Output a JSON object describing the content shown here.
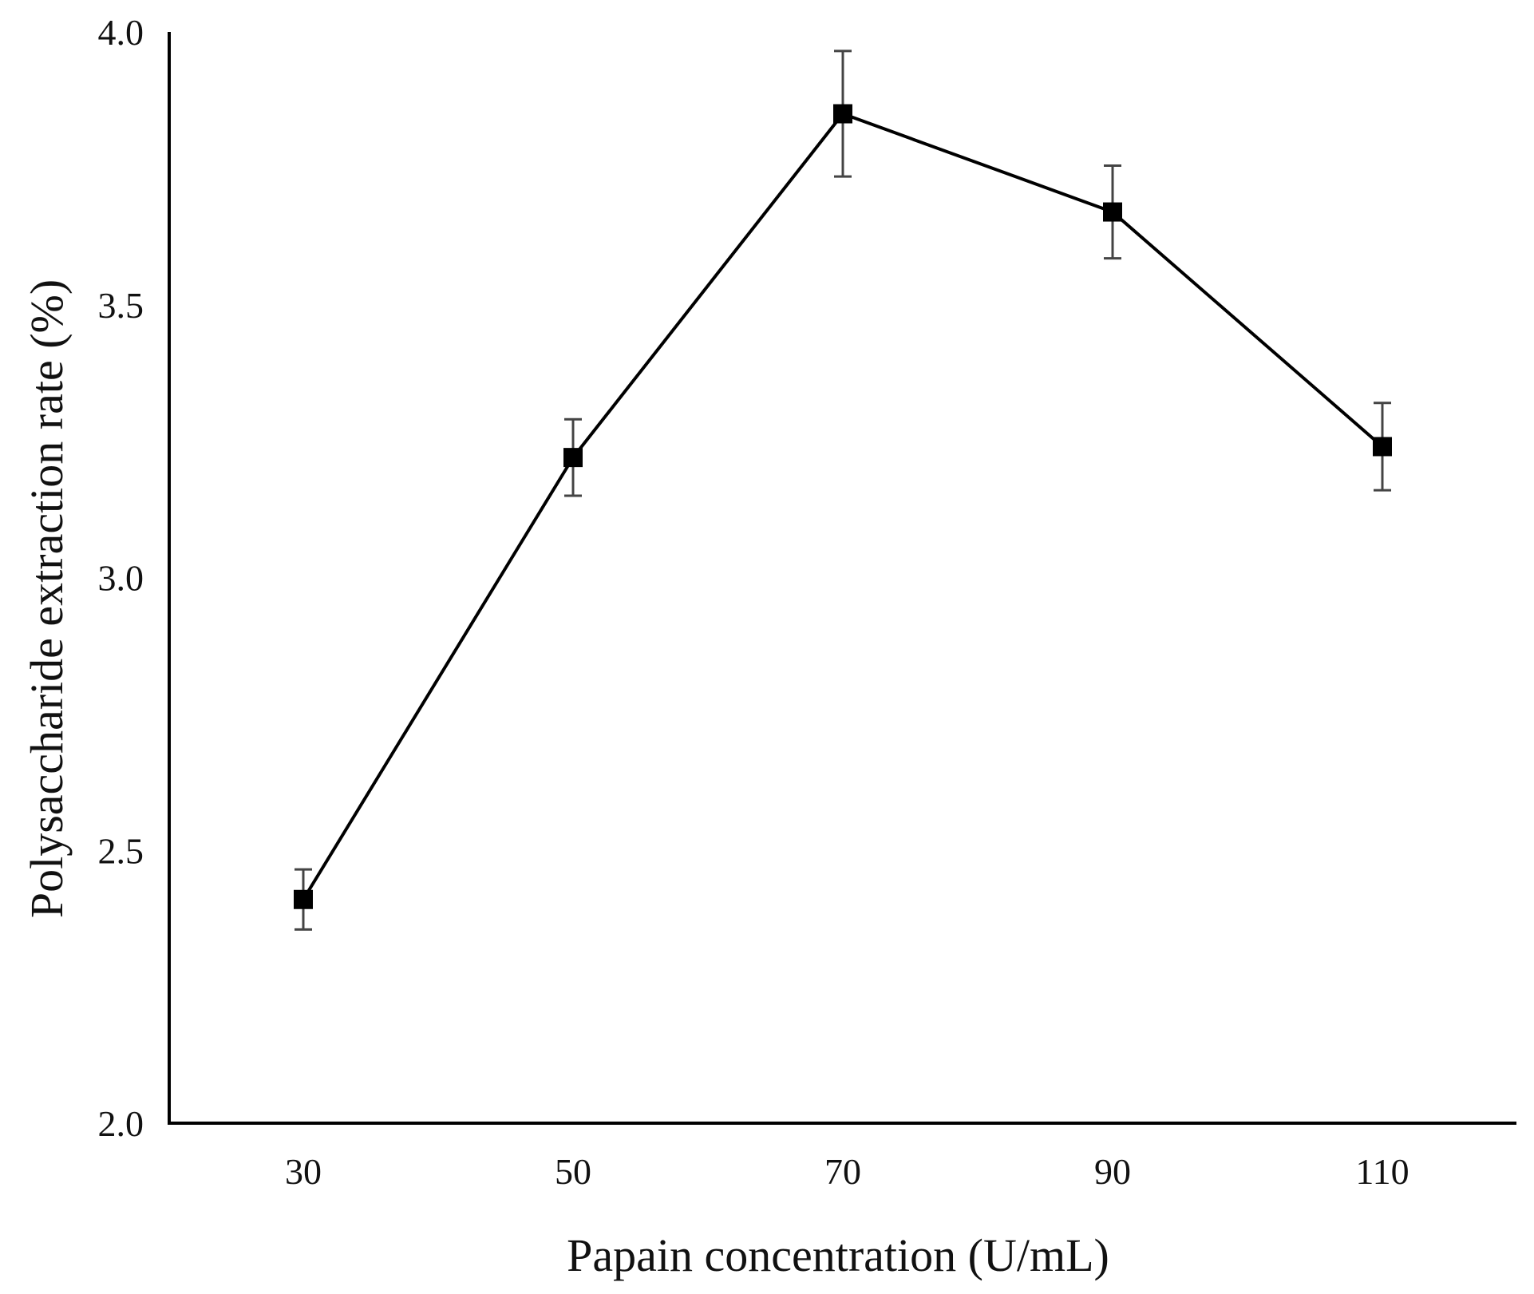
{
  "chart_data": {
    "type": "line",
    "title": "",
    "xlabel": "Papain concentration (U/mL)",
    "ylabel": "Polysaccharide extraction rate (%)",
    "categories": [
      "30",
      "50",
      "70",
      "90",
      "110"
    ],
    "series": [
      {
        "name": "Polysaccharide extraction rate",
        "values": [
          2.41,
          3.22,
          3.85,
          3.67,
          3.24
        ],
        "errors": [
          0.055,
          0.07,
          0.115,
          0.085,
          0.08
        ],
        "marker": "square",
        "color": "#000000"
      }
    ],
    "ylim": [
      2.0,
      4.0
    ],
    "yticks": [
      2.0,
      2.5,
      3.0,
      3.5,
      4.0
    ],
    "ytick_labels": [
      "2.0",
      "2.5",
      "3.0",
      "3.5",
      "4.0"
    ],
    "grid": false,
    "legend": "none"
  },
  "colors": {
    "line": "#000000",
    "error_bar": "#444444",
    "axis": "#000000"
  }
}
